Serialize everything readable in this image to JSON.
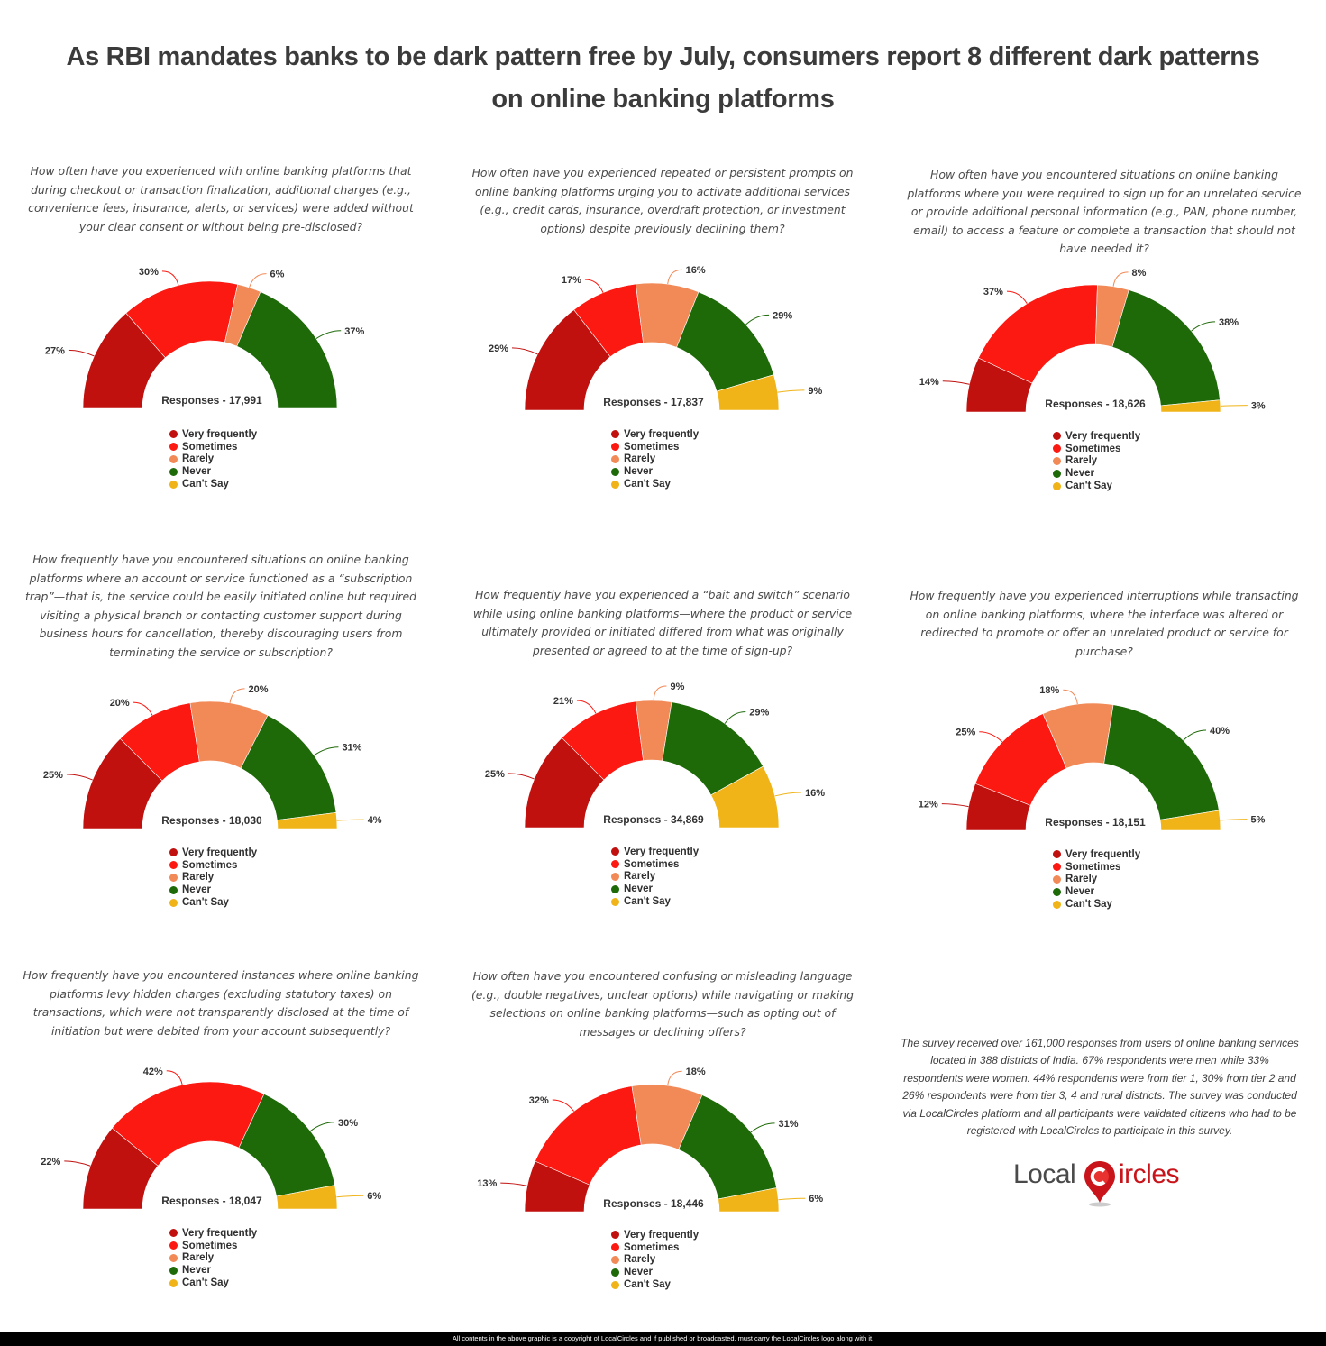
{
  "title": "As RBI mandates banks to be dark pattern free by July, consumers report 8 different dark patterns on online banking platforms",
  "title_line1": "As RBI mandates banks to be dark pattern free by July, consumers report 8 different dark patterns",
  "title_line2": "on online banking platforms",
  "colors": {
    "very_frequently": "#c0110f",
    "sometimes": "#fb1911",
    "rarely": "#f28a58",
    "never": "#1e6a09",
    "cant_say": "#f0b418",
    "text": "#3b3b3b"
  },
  "legend": [
    "Very frequently",
    "Sometimes",
    "Rarely",
    "Never",
    "Can't Say"
  ],
  "chart_data": [
    {
      "type": "pie",
      "subtype": "half-donut",
      "title": "How often have you experienced with online banking platforms that during checkout or transaction finalization, additional charges (e.g., convenience fees, insurance, alerts, or services) were added without your clear consent or without being pre-disclosed?",
      "categories": [
        "Very frequently",
        "Sometimes",
        "Rarely",
        "Never",
        "Can't Say"
      ],
      "values": [
        27,
        30,
        6,
        37,
        0
      ],
      "labels": [
        "27%",
        "30%",
        "6%",
        "37%",
        ""
      ],
      "responses": "Responses - 17,991"
    },
    {
      "type": "pie",
      "subtype": "half-donut",
      "title": "How often have you experienced repeated or persistent prompts on online banking platforms urging you to activate additional services (e.g., credit cards, insurance, overdraft protection, or investment options) despite previously declining them?",
      "categories": [
        "Very frequently",
        "Sometimes",
        "Rarely",
        "Never",
        "Can't Say"
      ],
      "values": [
        29,
        17,
        16,
        29,
        9
      ],
      "labels": [
        "29%",
        "17%",
        "16%",
        "29%",
        "9%"
      ],
      "responses": "Responses - 17,837"
    },
    {
      "type": "pie",
      "subtype": "half-donut",
      "title": "How often have you encountered situations on online banking platforms where you were required to sign up for an unrelated service or provide additional personal information (e.g., PAN, phone number, email) to access a feature or complete a transaction that should not have needed it?",
      "categories": [
        "Very frequently",
        "Sometimes",
        "Rarely",
        "Never",
        "Can't Say"
      ],
      "values": [
        14,
        37,
        8,
        38,
        3
      ],
      "labels": [
        "14%",
        "37%",
        "8%",
        "38%",
        "3%"
      ],
      "responses": "Responses - 18,626"
    },
    {
      "type": "pie",
      "subtype": "half-donut",
      "title": "How frequently have you encountered situations on online banking platforms where an account or service functioned as a “subscription trap”—that is, the service could be easily initiated online but required visiting a physical branch or contacting customer support during business hours for cancellation, thereby discouraging users from terminating the service or subscription?",
      "categories": [
        "Very frequently",
        "Sometimes",
        "Rarely",
        "Never",
        "Can't Say"
      ],
      "values": [
        25,
        20,
        20,
        31,
        4
      ],
      "labels": [
        "25%",
        "20%",
        "20%",
        "31%",
        "4%"
      ],
      "responses": "Responses - 18,030"
    },
    {
      "type": "pie",
      "subtype": "half-donut",
      "title": "How frequently have you experienced a “bait and switch” scenario while using online banking platforms—where the product or service ultimately provided or initiated differed from what was originally presented or agreed to at the time of sign-up?",
      "categories": [
        "Very frequently",
        "Sometimes",
        "Rarely",
        "Never",
        "Can't Say"
      ],
      "values": [
        25,
        21,
        9,
        29,
        16
      ],
      "labels": [
        "25%",
        "21%",
        "9%",
        "29%",
        "16%"
      ],
      "responses": "Responses - 34,869"
    },
    {
      "type": "pie",
      "subtype": "half-donut",
      "title": "How frequently have you experienced interruptions while transacting on online banking platforms, where the interface was altered or redirected to promote or offer an unrelated product or service for purchase?",
      "categories": [
        "Very frequently",
        "Sometimes",
        "Rarely",
        "Never",
        "Can't Say"
      ],
      "values": [
        12,
        25,
        18,
        40,
        5
      ],
      "labels": [
        "12%",
        "25%",
        "18%",
        "40%",
        "5%"
      ],
      "responses": "Responses - 18,151"
    },
    {
      "type": "pie",
      "subtype": "half-donut",
      "title": "How frequently have you encountered instances where online banking platforms levy hidden charges (excluding statutory taxes) on transactions, which were not transparently disclosed at the time of initiation but were debited from your account subsequently?",
      "categories": [
        "Very frequently",
        "Sometimes",
        "Rarely",
        "Never",
        "Can't Say"
      ],
      "values": [
        22,
        42,
        0,
        30,
        6
      ],
      "labels": [
        "22%",
        "42%",
        "",
        "30%",
        "6%"
      ],
      "responses": "Responses - 18,047"
    },
    {
      "type": "pie",
      "subtype": "half-donut",
      "title": "How often have you encountered confusing or misleading language (e.g., double negatives, unclear options) while navigating or making selections on online banking platforms—such as opting out of messages or declining offers?",
      "categories": [
        "Very frequently",
        "Sometimes",
        "Rarely",
        "Never",
        "Can't Say"
      ],
      "values": [
        13,
        32,
        18,
        31,
        6
      ],
      "labels": [
        "13%",
        "32%",
        "18%",
        "31%",
        "6%"
      ],
      "responses": "Responses - 18,446"
    }
  ],
  "summary": "The survey received over 161,000 responses from users of online banking services located in 388 districts of India. 67% respondents were men while 33% respondents were women. 44% respondents were from tier 1, 30% from tier 2 and 26% respondents were from tier 3, 4 and rural districts. The survey was conducted via LocalCircles platform and all participants were validated citizens who had to be registered with LocalCircles to participate in this survey.",
  "logo": {
    "left": "Local",
    "mid": "C",
    "right": "ircles"
  },
  "footer": "All contents in the above graphic is a copyright of LocalCircles and if published or broadcasted, must carry the LocalCircles logo along with it."
}
